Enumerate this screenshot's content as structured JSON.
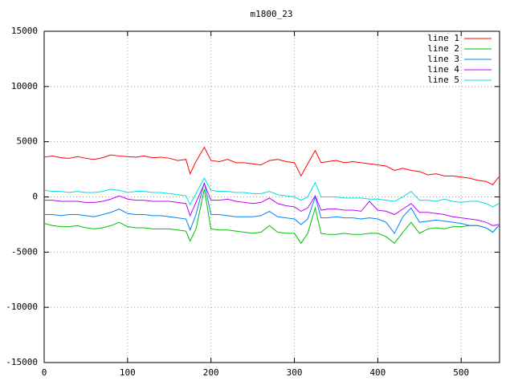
{
  "chart_data": {
    "type": "line",
    "title": "m1800_23",
    "x": [
      0,
      10,
      20,
      30,
      40,
      50,
      60,
      70,
      80,
      90,
      100,
      110,
      120,
      130,
      140,
      150,
      160,
      170,
      175,
      182,
      192,
      200,
      210,
      220,
      230,
      240,
      250,
      260,
      270,
      280,
      290,
      300,
      308,
      316,
      325,
      332,
      340,
      350,
      360,
      370,
      380,
      390,
      400,
      410,
      420,
      430,
      440,
      450,
      460,
      470,
      480,
      490,
      500,
      510,
      520,
      530,
      538,
      545
    ],
    "series": [
      {
        "name": "line 1",
        "color": "#ff0000",
        "values": [
          3600,
          3700,
          3550,
          3500,
          3650,
          3500,
          3400,
          3550,
          3800,
          3700,
          3650,
          3600,
          3700,
          3550,
          3600,
          3500,
          3300,
          3400,
          2100,
          3200,
          4500,
          3300,
          3200,
          3400,
          3100,
          3100,
          3000,
          2900,
          3300,
          3400,
          3200,
          3100,
          1900,
          3000,
          4200,
          3100,
          3200,
          3300,
          3100,
          3200,
          3100,
          3000,
          2900,
          2800,
          2400,
          2600,
          2400,
          2300,
          2000,
          2100,
          1900,
          1900,
          1800,
          1700,
          1500,
          1400,
          1100,
          1800
        ]
      },
      {
        "name": "line 2",
        "color": "#00c000",
        "values": [
          -2400,
          -2600,
          -2700,
          -2700,
          -2600,
          -2800,
          -2900,
          -2800,
          -2600,
          -2300,
          -2700,
          -2800,
          -2800,
          -2900,
          -2900,
          -2900,
          -3000,
          -3100,
          -4000,
          -2900,
          700,
          -2900,
          -3000,
          -3000,
          -3100,
          -3200,
          -3300,
          -3200,
          -2600,
          -3200,
          -3300,
          -3300,
          -4200,
          -3300,
          -1000,
          -3300,
          -3400,
          -3400,
          -3300,
          -3400,
          -3400,
          -3300,
          -3300,
          -3600,
          -4200,
          -3200,
          -2300,
          -3300,
          -2900,
          -2800,
          -2900,
          -2700,
          -2700,
          -2600,
          -2600,
          -2800,
          -3200,
          -2600
        ]
      },
      {
        "name": "line 3",
        "color": "#0080ff",
        "values": [
          -1600,
          -1600,
          -1700,
          -1600,
          -1600,
          -1700,
          -1800,
          -1600,
          -1400,
          -1100,
          -1500,
          -1600,
          -1600,
          -1700,
          -1700,
          -1800,
          -1900,
          -2000,
          -3000,
          -1600,
          1300,
          -1600,
          -1600,
          -1700,
          -1800,
          -1800,
          -1800,
          -1700,
          -1300,
          -1800,
          -1900,
          -2000,
          -2500,
          -2000,
          0,
          -1900,
          -1900,
          -1800,
          -1900,
          -1900,
          -2000,
          -1900,
          -2000,
          -2300,
          -3300,
          -1800,
          -1000,
          -2300,
          -2200,
          -2100,
          -2200,
          -2300,
          -2400,
          -2600,
          -2600,
          -2800,
          -3200,
          -2600
        ]
      },
      {
        "name": "line 4",
        "color": "#c000ff",
        "values": [
          -300,
          -300,
          -400,
          -400,
          -400,
          -500,
          -500,
          -400,
          -200,
          100,
          -200,
          -300,
          -300,
          -400,
          -400,
          -400,
          -500,
          -600,
          -1700,
          -500,
          1200,
          -300,
          -300,
          -200,
          -400,
          -500,
          -600,
          -500,
          -100,
          -600,
          -800,
          -900,
          -1300,
          -1000,
          100,
          -1200,
          -1100,
          -1100,
          -1200,
          -1200,
          -1300,
          -400,
          -1200,
          -1300,
          -1600,
          -1100,
          -600,
          -1400,
          -1400,
          -1500,
          -1600,
          -1800,
          -1900,
          -2000,
          -2100,
          -2300,
          -2600,
          -2500
        ]
      },
      {
        "name": "line 5",
        "color": "#00e0e0",
        "values": [
          600,
          500,
          500,
          400,
          500,
          400,
          400,
          500,
          700,
          600,
          400,
          500,
          500,
          400,
          400,
          300,
          200,
          100,
          -700,
          300,
          1700,
          600,
          500,
          500,
          400,
          400,
          300,
          300,
          500,
          200,
          100,
          0,
          -300,
          0,
          1300,
          0,
          0,
          0,
          -100,
          -100,
          -100,
          -200,
          -200,
          -300,
          -400,
          0,
          500,
          -300,
          -300,
          -400,
          -200,
          -400,
          -500,
          -400,
          -400,
          -600,
          -900,
          -600
        ]
      }
    ],
    "xlim": [
      0,
      546
    ],
    "ylim": [
      -15000,
      15000
    ],
    "xticks": [
      0,
      100,
      200,
      300,
      400,
      500
    ],
    "yticks": [
      -15000,
      -10000,
      -5000,
      0,
      5000,
      10000,
      15000
    ],
    "grid": true,
    "legend": "top-right"
  }
}
